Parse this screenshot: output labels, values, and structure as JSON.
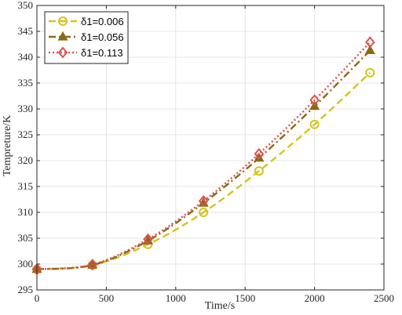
{
  "chart_data": {
    "type": "line",
    "xlabel": "Time/s",
    "ylabel": "Tempreture/K",
    "xlim": [
      0,
      2500
    ],
    "ylim": [
      295,
      350
    ],
    "xticks": [
      0,
      500,
      1000,
      1500,
      2000,
      2500
    ],
    "yticks": [
      295,
      300,
      305,
      310,
      315,
      320,
      325,
      330,
      335,
      340,
      345,
      350
    ],
    "grid": true,
    "legend_position": "top-left",
    "x": [
      0,
      400,
      800,
      1200,
      1600,
      2000,
      2400
    ],
    "series": [
      {
        "name": "δ1=0.006",
        "color": "#d4c41a",
        "line_style": "dashed",
        "marker": "circle",
        "values": [
          299,
          299.8,
          303.8,
          310,
          318,
          327,
          337
        ]
      },
      {
        "name": "δ1=0.056",
        "color": "#8b6914",
        "line_style": "dash-dot",
        "marker": "triangle",
        "values": [
          299,
          299.8,
          304.5,
          311.8,
          320.5,
          330.5,
          341.3
        ]
      },
      {
        "name": "δ1=0.113",
        "color": "#d9534f",
        "line_style": "dotted",
        "marker": "diamond",
        "values": [
          299,
          299.9,
          304.8,
          312.2,
          321.3,
          331.7,
          342.9
        ]
      }
    ]
  }
}
